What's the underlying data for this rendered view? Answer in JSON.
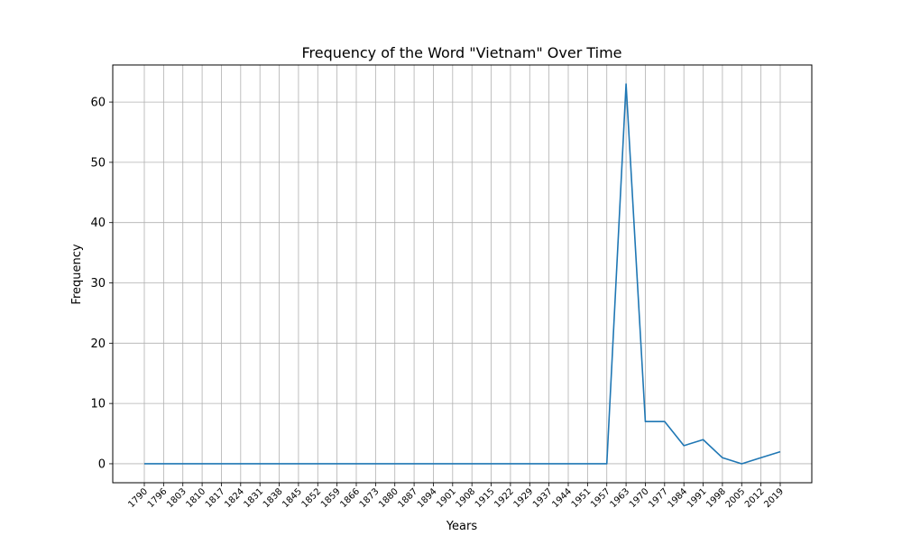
{
  "chart_data": {
    "type": "line",
    "title": "Frequency of the Word \"Vietnam\" Over Time",
    "xlabel": "Years",
    "ylabel": "Frequency",
    "ylim": [
      -3.15,
      66.15
    ],
    "yticks": [
      0,
      10,
      20,
      30,
      40,
      50,
      60
    ],
    "grid": true,
    "line_color": "#1f77b4",
    "x": [
      "1790",
      "1796",
      "1803",
      "1810",
      "1817",
      "1824",
      "1831",
      "1838",
      "1845",
      "1852",
      "1859",
      "1866",
      "1873",
      "1880",
      "1887",
      "1894",
      "1901",
      "1908",
      "1915",
      "1922",
      "1929",
      "1937",
      "1944",
      "1951",
      "1957",
      "1963",
      "1970",
      "1977",
      "1984",
      "1991",
      "1998",
      "2005",
      "2012",
      "2019"
    ],
    "values": [
      0,
      0,
      0,
      0,
      0,
      0,
      0,
      0,
      0,
      0,
      0,
      0,
      0,
      0,
      0,
      0,
      0,
      0,
      0,
      0,
      0,
      0,
      0,
      0,
      0,
      63,
      7,
      7,
      3,
      4,
      1,
      0,
      1,
      2
    ]
  }
}
